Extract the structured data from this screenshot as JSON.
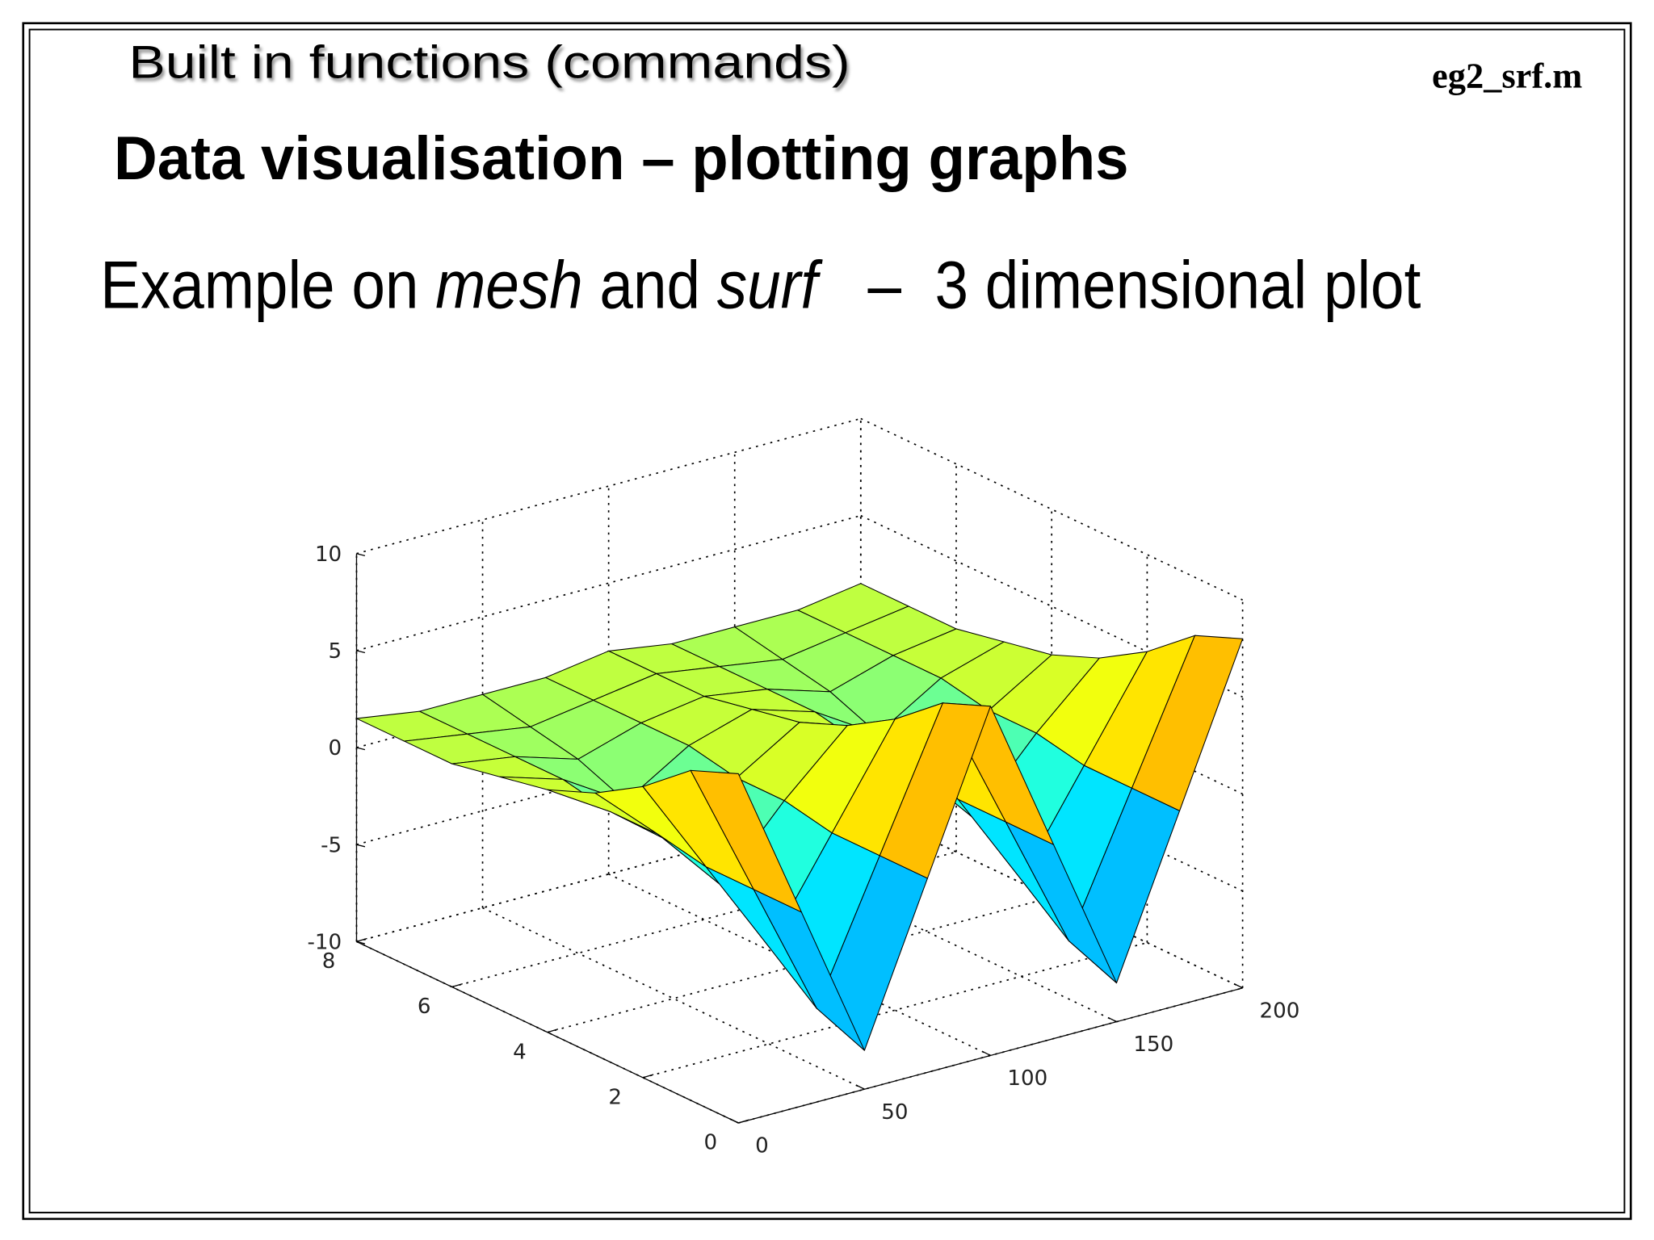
{
  "slide": {
    "header": "Built in functions (commands)",
    "filename": "eg2_srf.m",
    "title": "Data visualisation – plotting graphs",
    "subtitle_parts": [
      "Example on ",
      "mesh",
      " and ",
      "surf",
      "   –  3 dimensional plot"
    ]
  },
  "chart_data": {
    "type": "surface",
    "x": [
      0,
      25,
      50,
      75,
      100,
      125,
      150,
      175,
      200
    ],
    "y": [
      0,
      1,
      2,
      3,
      4,
      5,
      6,
      7,
      8
    ],
    "z": [
      [
        8,
        0,
        -8,
        0,
        8,
        0,
        -8,
        0,
        8
      ],
      [
        7,
        0,
        -7,
        0,
        7,
        0,
        -7,
        0,
        7
      ],
      [
        5,
        0,
        -5,
        0,
        5,
        0,
        -5,
        0,
        5
      ],
      [
        3.5,
        0.5,
        -3,
        0.5,
        3.5,
        0.5,
        -3,
        0.5,
        3.5
      ],
      [
        2.5,
        0.5,
        -2,
        0.5,
        2.5,
        0.5,
        -2,
        0.5,
        2.5
      ],
      [
        2,
        1,
        -1,
        1,
        2,
        1,
        -1,
        1,
        2
      ],
      [
        1.5,
        1,
        0,
        1,
        1.5,
        1,
        0,
        1,
        1.5
      ],
      [
        1.5,
        1,
        0.5,
        1,
        1.5,
        1,
        0.5,
        1,
        1.5
      ],
      [
        1.5,
        1,
        1,
        1,
        1.5,
        1,
        1,
        1,
        1.5
      ]
    ],
    "xlim": [
      0,
      200
    ],
    "xticks": [
      0,
      50,
      100,
      150,
      200
    ],
    "ylim": [
      0,
      8
    ],
    "yticks": [
      0,
      2,
      4,
      6,
      8
    ],
    "zlim": [
      -10,
      10
    ],
    "zticks": [
      -10,
      -5,
      0,
      5,
      10
    ],
    "grid": true,
    "colormap": "jet"
  }
}
